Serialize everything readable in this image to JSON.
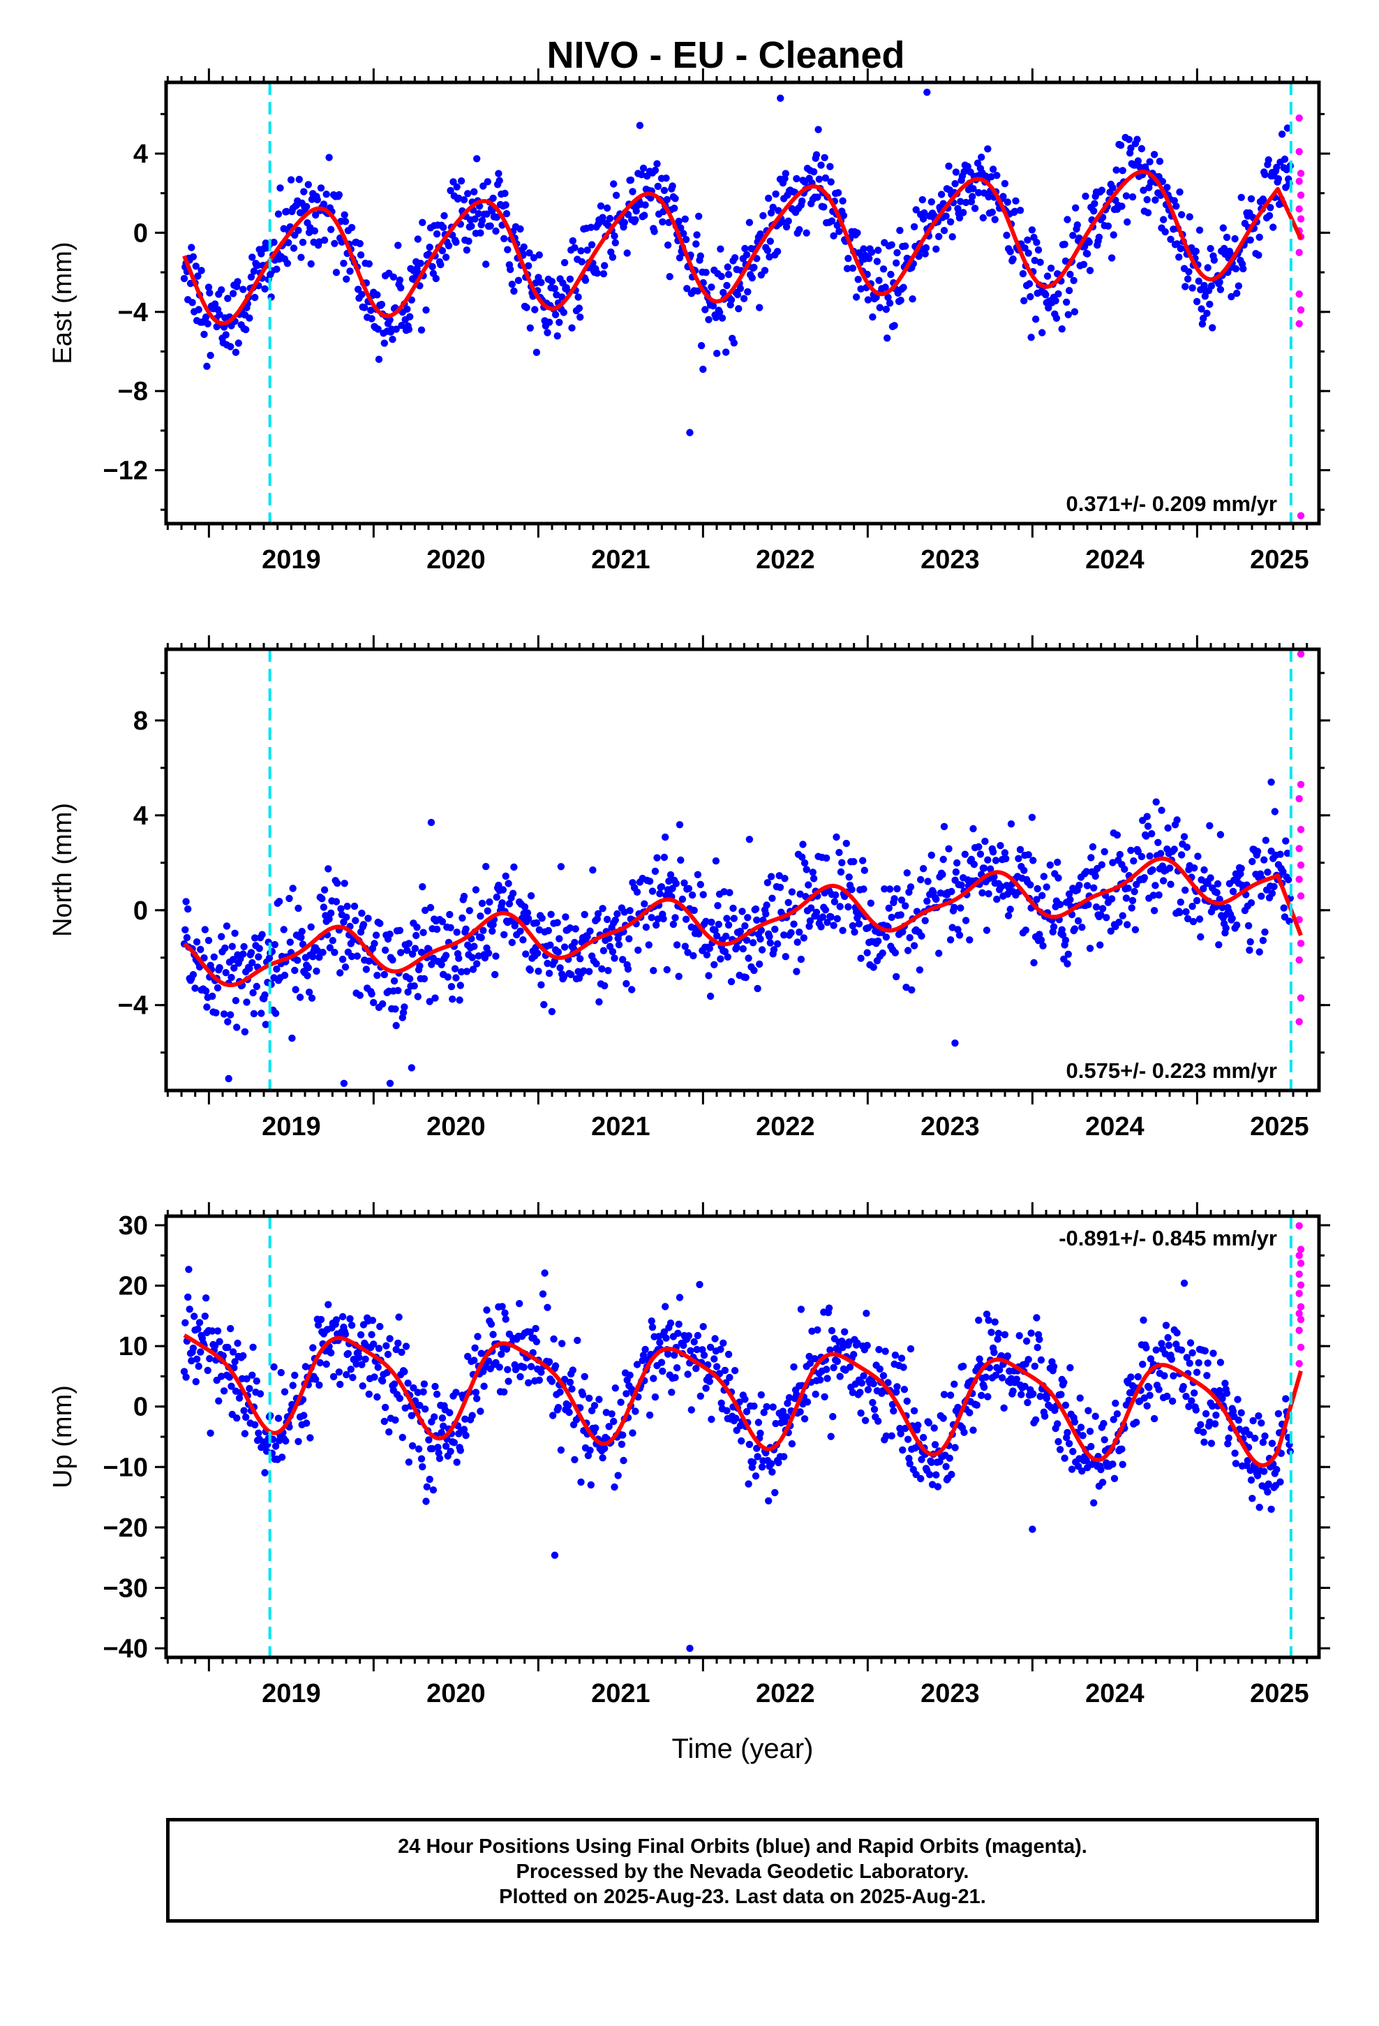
{
  "chart_data": [
    {
      "type": "scatter",
      "title": "NIVO  - EU - Cleaned",
      "ylabel": "East (mm)",
      "xlabel": "",
      "xlim": [
        2018.74,
        2025.74
      ],
      "ylim": [
        -14.7,
        7.6
      ],
      "yticks": [
        4,
        0,
        -4,
        -8,
        -12
      ],
      "xticks": [
        2019,
        2020,
        2021,
        2022,
        2023,
        2024,
        2025
      ],
      "rate_label": "0.371+/- 0.209 mm/yr",
      "rate_position": "bottom-right",
      "vlines": [
        2019.37,
        2025.57
      ],
      "series": [
        {
          "name": "Final Orbits",
          "color": "#0000ff",
          "marker": "dot",
          "model": {
            "mean": -0.5,
            "trend": 0.371,
            "annual_amp": 2.7,
            "annual_phase": 0.37,
            "semi_amp": 0.4,
            "semi_phase": 0.15,
            "noise": 1.1,
            "start": 2018.85,
            "end": 2025.57,
            "step": 0.0055
          },
          "outliers": [
            [
              2021.92,
              -10.1
            ],
            [
              2022.0,
              -6.9
            ],
            [
              2022.47,
              6.8
            ],
            [
              2023.36,
              7.1
            ]
          ]
        },
        {
          "name": "Rapid Orbits",
          "color": "#ff00ff",
          "marker": "dot",
          "points": [
            [
              2025.62,
              5.8
            ],
            [
              2025.62,
              4.1
            ],
            [
              2025.63,
              3.0
            ],
            [
              2025.62,
              2.6
            ],
            [
              2025.63,
              1.9
            ],
            [
              2025.62,
              1.2
            ],
            [
              2025.63,
              0.7
            ],
            [
              2025.62,
              0.1
            ],
            [
              2025.63,
              -0.2
            ],
            [
              2025.62,
              -1.0
            ],
            [
              2025.62,
              -3.1
            ],
            [
              2025.63,
              -3.9
            ],
            [
              2025.62,
              -4.6
            ],
            [
              2025.63,
              -14.3
            ]
          ]
        },
        {
          "name": "Model",
          "color": "#ff0000",
          "type": "line"
        }
      ]
    },
    {
      "type": "scatter",
      "ylabel": "North (mm)",
      "xlabel": "",
      "xlim": [
        2018.74,
        2025.74
      ],
      "ylim": [
        -7.6,
        11.0
      ],
      "yticks": [
        8,
        4,
        0,
        -4
      ],
      "xticks": [
        2019,
        2020,
        2021,
        2022,
        2023,
        2024,
        2025
      ],
      "rate_label": "0.575+/- 0.223 mm/yr",
      "rate_position": "bottom-right",
      "vlines": [
        2019.37,
        2025.57
      ],
      "series": [
        {
          "name": "Final Orbits",
          "color": "#0000ff",
          "marker": "dot",
          "model": {
            "mean": -0.4,
            "trend": 0.575,
            "annual_amp": 0.9,
            "annual_phase": 0.47,
            "semi_amp": 0.3,
            "semi_phase": 0.2,
            "noise": 1.15,
            "start": 2018.85,
            "end": 2025.57,
            "step": 0.0055
          },
          "outliers": [
            [
              2019.12,
              -7.1
            ],
            [
              2019.82,
              -7.3
            ],
            [
              2020.1,
              -7.3
            ],
            [
              2020.35,
              3.7
            ],
            [
              2023.53,
              -5.6
            ],
            [
              2025.45,
              5.4
            ]
          ]
        },
        {
          "name": "Rapid Orbits",
          "color": "#ff00ff",
          "marker": "dot",
          "points": [
            [
              2025.63,
              10.8
            ],
            [
              2025.63,
              5.3
            ],
            [
              2025.62,
              4.7
            ],
            [
              2025.63,
              3.4
            ],
            [
              2025.62,
              2.6
            ],
            [
              2025.63,
              1.9
            ],
            [
              2025.62,
              1.3
            ],
            [
              2025.63,
              0.6
            ],
            [
              2025.62,
              -0.4
            ],
            [
              2025.63,
              -1.4
            ],
            [
              2025.62,
              -2.1
            ],
            [
              2025.63,
              -3.7
            ],
            [
              2025.62,
              -4.7
            ]
          ]
        },
        {
          "name": "Model",
          "color": "#ff0000",
          "type": "line"
        }
      ]
    },
    {
      "type": "scatter",
      "ylabel": "Up (mm)",
      "xlabel": "Time (year)",
      "xlim": [
        2018.74,
        2025.74
      ],
      "ylim": [
        -41.5,
        31.5
      ],
      "yticks": [
        30,
        20,
        10,
        0,
        -10,
        -20,
        -30,
        -40
      ],
      "xticks": [
        2019,
        2020,
        2021,
        2022,
        2023,
        2024,
        2025
      ],
      "rate_label": "-0.891+/- 0.845 mm/yr",
      "rate_position": "top-right",
      "vlines": [
        2019.37,
        2025.57
      ],
      "series": [
        {
          "name": "Final Orbits",
          "color": "#0000ff",
          "marker": "dot",
          "model": {
            "mean": 2.3,
            "trend": -0.891,
            "annual_amp": 7.6,
            "annual_phase": 0.62,
            "semi_amp": 1.8,
            "semi_phase": 0.55,
            "noise": 4.0,
            "start": 2018.85,
            "end": 2025.57,
            "step": 0.0055
          },
          "outliers": [
            [
              2021.1,
              -24.6
            ],
            [
              2021.92,
              -40.0
            ],
            [
              2024.0,
              -20.3
            ]
          ]
        },
        {
          "name": "Rapid Orbits",
          "color": "#ff00ff",
          "marker": "dot",
          "points": [
            [
              2025.62,
              29.9
            ],
            [
              2025.63,
              26.0
            ],
            [
              2025.62,
              25.0
            ],
            [
              2025.63,
              23.7
            ],
            [
              2025.62,
              21.9
            ],
            [
              2025.63,
              20.1
            ],
            [
              2025.62,
              18.7
            ],
            [
              2025.63,
              16.5
            ],
            [
              2025.62,
              15.4
            ],
            [
              2025.63,
              14.4
            ],
            [
              2025.62,
              12.6
            ],
            [
              2025.63,
              9.8
            ],
            [
              2025.62,
              7.1
            ]
          ]
        },
        {
          "name": "Model",
          "color": "#ff0000",
          "type": "line"
        }
      ]
    }
  ],
  "footer": {
    "line1": "24 Hour Positions Using Final Orbits (blue) and Rapid Orbits (magenta).",
    "line2": "Processed by the Nevada Geodetic Laboratory.",
    "line3": "Plotted on 2025-Aug-23. Last data on 2025-Aug-21."
  }
}
